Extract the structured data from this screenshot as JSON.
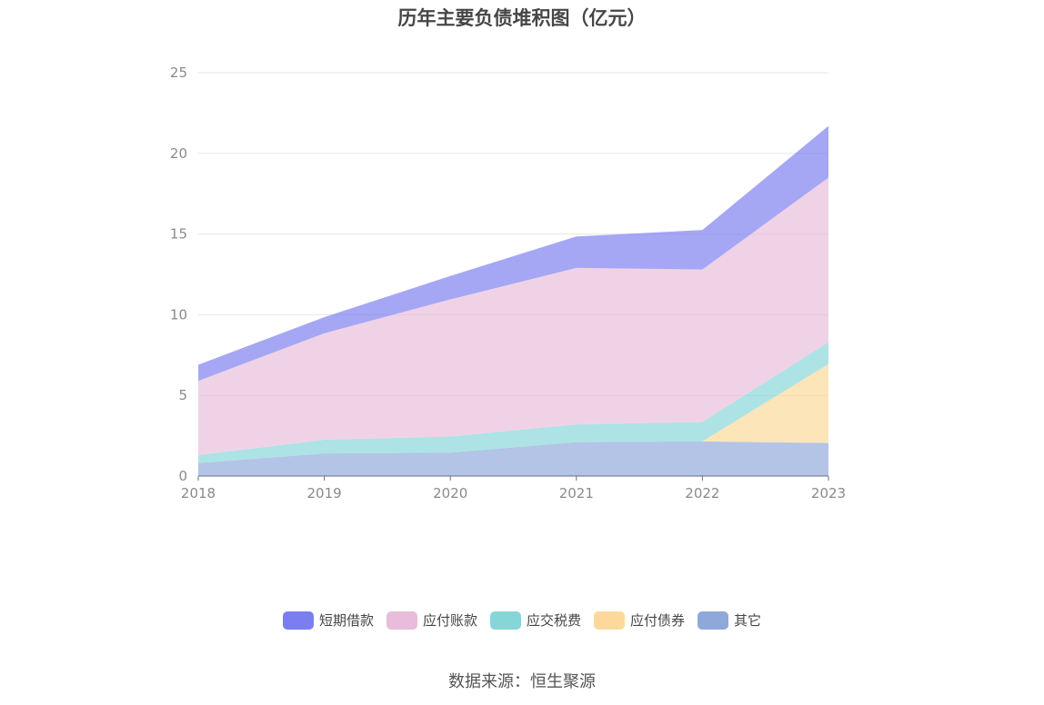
{
  "title": "历年主要负债堆积图（亿元）",
  "source": "数据来源：恒生聚源",
  "colors": {
    "短期借款": "#7b7ef0",
    "应付账款": "#e9bcdc",
    "应交税费": "#86d6d8",
    "应付债券": "#fcd99a",
    "其它": "#8fa8da"
  },
  "chart_data": {
    "type": "area",
    "stacked": true,
    "title": "历年主要负债堆积图（亿元）",
    "x": [
      "2018",
      "2019",
      "2020",
      "2021",
      "2022",
      "2023"
    ],
    "ylim": [
      0,
      25
    ],
    "yticks": [
      0,
      5,
      10,
      15,
      20,
      25
    ],
    "grid": true,
    "legend_position": "bottom",
    "series": [
      {
        "name": "其它",
        "values": [
          0.8,
          1.4,
          1.45,
          2.1,
          2.15,
          2.05
        ]
      },
      {
        "name": "应付债券",
        "values": [
          0,
          0,
          0,
          0,
          0,
          4.9
        ]
      },
      {
        "name": "应交税费",
        "values": [
          0.5,
          0.85,
          1.0,
          1.1,
          1.2,
          1.35
        ]
      },
      {
        "name": "应付账款",
        "values": [
          4.6,
          6.6,
          8.5,
          9.7,
          9.45,
          10.2
        ]
      },
      {
        "name": "短期借款",
        "values": [
          1.0,
          1.0,
          1.45,
          1.95,
          2.45,
          3.2
        ]
      }
    ],
    "legend": [
      "短期借款",
      "应付账款",
      "应交税费",
      "应付债券",
      "其它"
    ]
  }
}
